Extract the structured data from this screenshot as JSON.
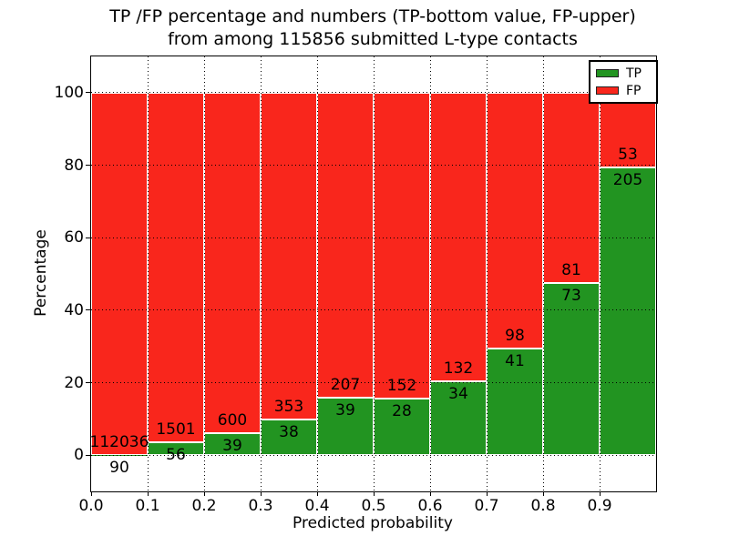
{
  "title": {
    "line1": "TP /FP percentage and numbers (TP-bottom value, FP-upper)",
    "line2": "from among 115856 submitted L-type contacts"
  },
  "y_axis": {
    "label": "Percentage",
    "ticks": [
      "0",
      "20",
      "40",
      "60",
      "80",
      "100"
    ],
    "tick_values": [
      0,
      20,
      40,
      60,
      80,
      100
    ]
  },
  "x_axis": {
    "label": "Predicted probability",
    "ticks": [
      "0.0",
      "0.1",
      "0.2",
      "0.3",
      "0.4",
      "0.5",
      "0.6",
      "0.7",
      "0.8",
      "0.9"
    ],
    "tick_values": [
      0.0,
      0.1,
      0.2,
      0.3,
      0.4,
      0.5,
      0.6,
      0.7,
      0.8,
      0.9
    ]
  },
  "legend": {
    "items": [
      {
        "label": "TP",
        "color": "#229421"
      },
      {
        "label": "FP",
        "color": "#f9261c"
      }
    ]
  },
  "colors": {
    "tp": "#229421",
    "fp": "#f9261c",
    "text": "#000000",
    "background": "#ffffff",
    "bar_edge": "#ffffff"
  },
  "chart_data": {
    "type": "bar",
    "stacked": true,
    "title": "TP /FP percentage and numbers (TP-bottom value, FP-upper) from among 115856 submitted L-type contacts",
    "xlabel": "Predicted probability",
    "ylabel": "Percentage",
    "xlim": [
      0.0,
      1.0
    ],
    "ylim": [
      -10,
      110
    ],
    "bin_width": 0.1,
    "bin_starts": [
      0.0,
      0.1,
      0.2,
      0.3,
      0.4,
      0.5,
      0.6,
      0.7,
      0.8,
      0.9
    ],
    "total_submitted": 115856,
    "series": [
      {
        "name": "TP",
        "color": "#229421",
        "counts": [
          90,
          56,
          39,
          38,
          39,
          28,
          34,
          41,
          73,
          205
        ]
      },
      {
        "name": "FP",
        "color": "#f9261c",
        "counts": [
          112036,
          1501,
          600,
          353,
          207,
          152,
          132,
          98,
          81,
          53
        ]
      }
    ],
    "tp_percentages": [
      0.08,
      3.6,
      6.1,
      9.72,
      15.85,
      15.56,
      20.48,
      29.5,
      47.4,
      79.46
    ],
    "fp_percentages": [
      99.92,
      96.4,
      93.9,
      90.28,
      84.15,
      84.44,
      79.52,
      70.5,
      52.6,
      20.54
    ],
    "grid": true,
    "legend_position": "upper right"
  }
}
